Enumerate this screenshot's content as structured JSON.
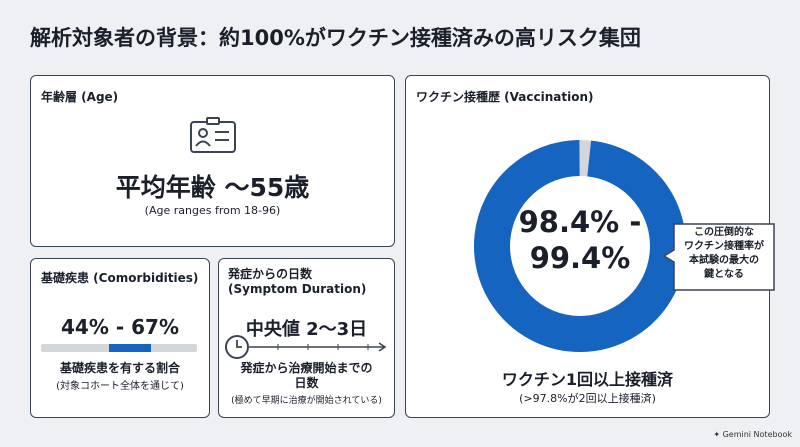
{
  "title": "解析対象者の背景：約100%がワクチン接種済みの高リスク集団",
  "age": {
    "heading": "年齢層 (Age)",
    "main": "平均年齢 〜55歳",
    "note": "(Age ranges from 18-96)"
  },
  "comorbidities": {
    "heading": "基礎疾患 (Comorbidities)",
    "range": "44% - 67%",
    "label": "基礎疾患を有する割合",
    "note": "(対象コホート全体を通じて)"
  },
  "symptom": {
    "heading_lines": [
      "発症からの日数",
      "(Symptom Duration)"
    ],
    "main": "中央値 2〜3日",
    "label_lines": [
      "発症から治療開始までの",
      "日数"
    ],
    "note": "(極めて早期に治療が開始されている)"
  },
  "vaccination": {
    "heading": "ワクチン接種歴 (Vaccination)",
    "center_lines": [
      "98.4% -",
      "99.4%"
    ],
    "callout_lines": [
      "この圧倒的な",
      "ワクチン接種率が",
      "本試験の最大の",
      "鍵となる"
    ],
    "main": "ワクチン1回以上接種済",
    "note": "(>97.8%が2回以上接種済)"
  },
  "footer": "Gemini Notebook"
}
